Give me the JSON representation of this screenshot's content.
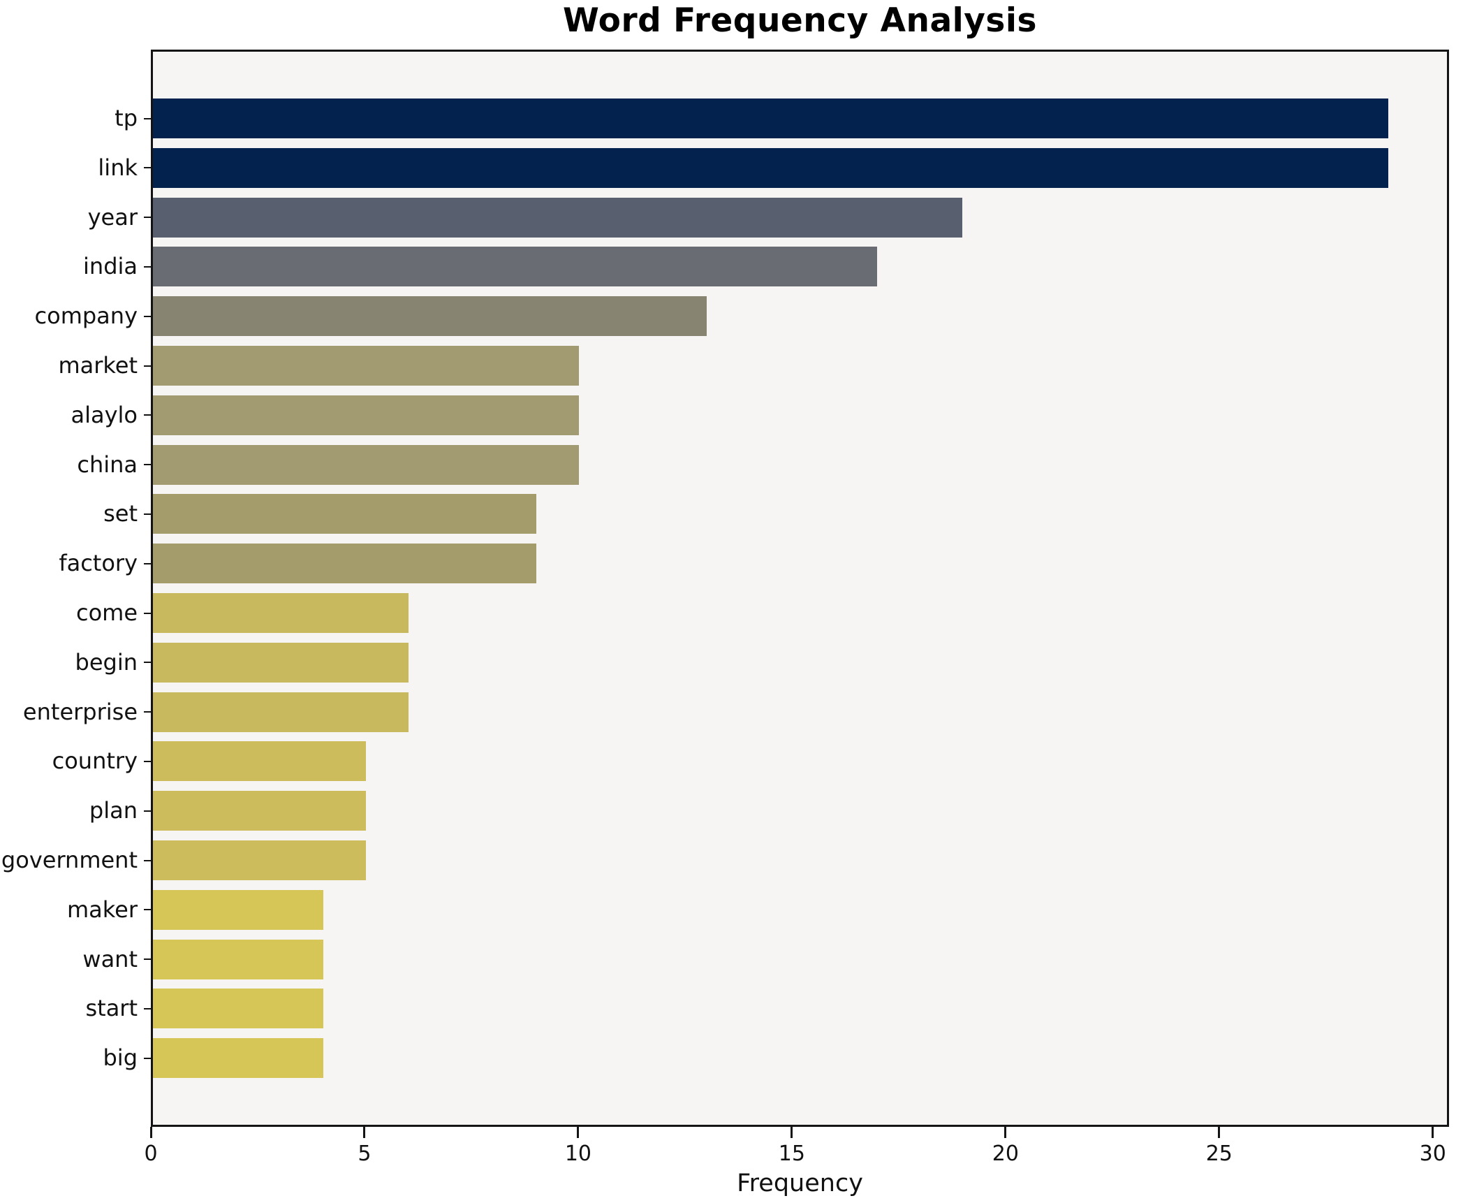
{
  "chart_data": {
    "type": "bar",
    "orientation": "horizontal",
    "title": "Word Frequency Analysis",
    "xlabel": "Frequency",
    "ylabel": "",
    "categories": [
      "tp",
      "link",
      "year",
      "india",
      "company",
      "market",
      "alaylo",
      "china",
      "set",
      "factory",
      "come",
      "begin",
      "enterprise",
      "country",
      "plan",
      "government",
      "maker",
      "want",
      "start",
      "big"
    ],
    "values": [
      29,
      29,
      19,
      17,
      13,
      10,
      10,
      10,
      9,
      9,
      6,
      6,
      6,
      5,
      5,
      5,
      4,
      4,
      4,
      4
    ],
    "bar_colors": [
      "#03234e",
      "#03234e",
      "#586070",
      "#696c72",
      "#888472",
      "#a29a70",
      "#a29a70",
      "#a29a70",
      "#a59c6c",
      "#a59c6c",
      "#c9b95e",
      "#c9b95e",
      "#c9b95e",
      "#ccbc5b",
      "#ccbc5b",
      "#ccbc5b",
      "#d6c658",
      "#d6c658",
      "#d6c658",
      "#d6c658"
    ],
    "x_ticks": [
      0,
      5,
      10,
      15,
      20,
      25,
      30
    ],
    "xlim": [
      0,
      30.38
    ],
    "grid": false,
    "legend": null
  },
  "style": {
    "figure_bg": "#ffffff",
    "plot_bg": "#f6f5f3",
    "spine_color": "#141414",
    "text_color": "#111111",
    "colormap": "cividis"
  }
}
